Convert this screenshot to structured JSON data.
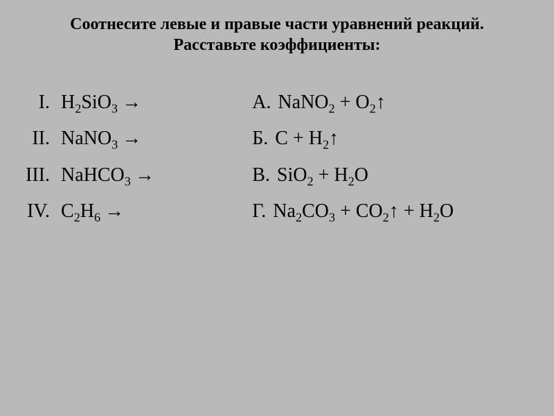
{
  "title": {
    "line1": "Соотнесите левые и правые части уравнений реакций.",
    "line2": "Расставьте коэффициенты:"
  },
  "left_items": [
    {
      "numeral": "I.",
      "formula_html": "H<sub>2</sub>SiO<sub>3</sub>",
      "arrow": "→"
    },
    {
      "numeral": "II.",
      "formula_html": "NaNO<sub>3</sub>",
      "arrow": "→"
    },
    {
      "numeral": "III.",
      "formula_html": "NaHCO<sub>3</sub>",
      "arrow": "→"
    },
    {
      "numeral": "IV.",
      "formula_html": "C<sub>2</sub>H<sub>6</sub>",
      "arrow": "→"
    }
  ],
  "right_items": [
    {
      "letter": "А.",
      "formula_html": "NaNO<sub>2</sub> + O<sub>2</sub>↑"
    },
    {
      "letter": "Б.",
      "formula_html": "C + H<sub>2</sub>↑"
    },
    {
      "letter": "В.",
      "formula_html": "SiO<sub>2</sub> + H<sub>2</sub>O"
    },
    {
      "letter": "Г.",
      "formula_html": "Na<sub>2</sub>CO<sub>3</sub> + CO<sub>2</sub>↑ + H<sub>2</sub>O"
    }
  ]
}
